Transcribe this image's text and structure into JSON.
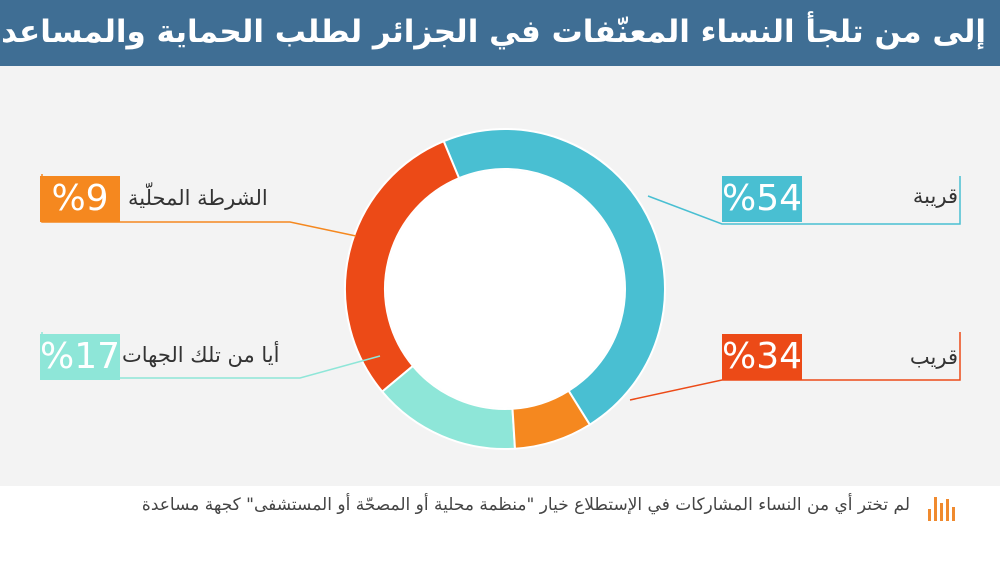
{
  "title": "إلى من تلجأ النساء المعنّفات في الجزائر لطلب الحماية والمساعدة؟",
  "chart_data": {
    "type": "pie",
    "subtype": "donut",
    "title": "إلى من تلجأ النساء المعنّفات في الجزائر لطلب الحماية والمساعدة؟",
    "categories": [
      "قريبة",
      "قريب",
      "أيا من تلك الجهات",
      "الشرطة المحلّية"
    ],
    "values": [
      54,
      34,
      17,
      9
    ],
    "value_labels": [
      "%54",
      "%34",
      "%17",
      "%9"
    ],
    "colors": [
      "#49bfd2",
      "#ec4a17",
      "#8ee6d8",
      "#f5881f"
    ],
    "unit": "%"
  },
  "legend": {
    "right": [
      {
        "label": "قريبة",
        "value": "%54",
        "color": "#49bfd2"
      },
      {
        "label": "قريب",
        "value": "%34",
        "color": "#ec4a17"
      }
    ],
    "left": [
      {
        "label": "الشرطة المحلّية",
        "value": "%9",
        "color": "#f5881f"
      },
      {
        "label": "أيا من تلك الجهات",
        "value": "%17",
        "color": "#8ee6d8"
      }
    ]
  },
  "footnote": "لم تختر أي من النساء المشاركات في الإستطلاع خيار \"منظمة محلية أو المصحّة أو المستشفى\" كجهة مساعدة",
  "icons": {
    "footnote": "bar-chart-icon"
  },
  "colors": {
    "header_bg": "#3f6e94",
    "chart_bg": "#f3f3f3",
    "icon_orange": "#f08a2e"
  }
}
